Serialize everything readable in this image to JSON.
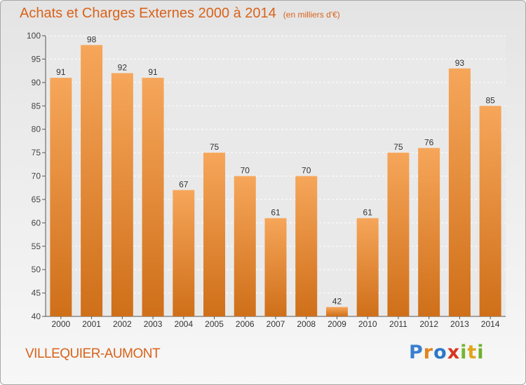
{
  "header": {
    "title": "Achats et Charges Externes 2000 à 2014",
    "unit": "(en milliers d'€)"
  },
  "footer": {
    "place": "VILLEQUIER-AUMONT",
    "logo": "Proxiti"
  },
  "colors": {
    "accent": "#d9621a",
    "bar_light": "#f6a65a",
    "bar_dark": "#cf6f19"
  },
  "chart_data": {
    "type": "bar",
    "title": "Achats et Charges Externes 2000 à 2014",
    "subtitle": "(en milliers d'€)",
    "categories": [
      "2000",
      "2001",
      "2002",
      "2003",
      "2004",
      "2005",
      "2006",
      "2007",
      "2008",
      "2009",
      "2010",
      "2011",
      "2012",
      "2013",
      "2014"
    ],
    "values": [
      91,
      98,
      92,
      91,
      67,
      75,
      70,
      61,
      70,
      42,
      61,
      75,
      76,
      93,
      85
    ],
    "ylim": [
      40,
      100
    ],
    "yticks": [
      40,
      45,
      50,
      55,
      60,
      65,
      70,
      75,
      80,
      85,
      90,
      95,
      100
    ],
    "grid": true,
    "legend": "none"
  }
}
